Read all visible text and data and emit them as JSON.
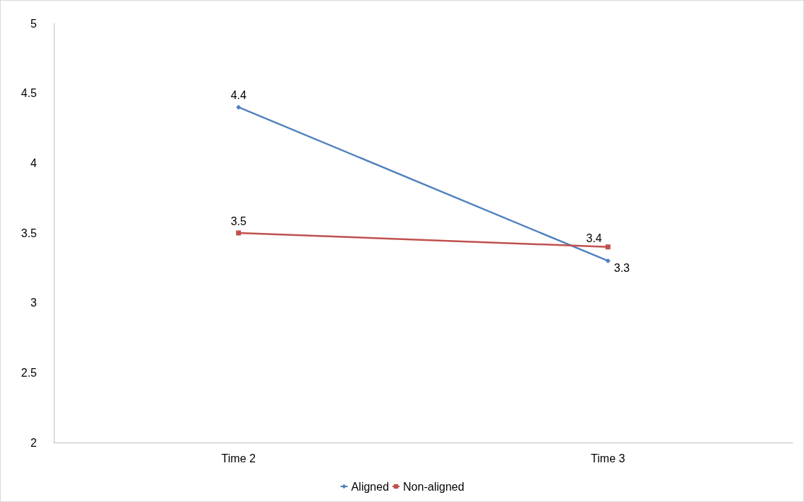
{
  "chart_data": {
    "type": "line",
    "categories": [
      "Time 2",
      "Time 3"
    ],
    "series": [
      {
        "name": "Aligned",
        "color": "#4f81bd",
        "values": [
          4.4,
          3.3
        ],
        "marker": "diamond"
      },
      {
        "name": "Non-aligned",
        "color": "#c0504d",
        "values": [
          3.5,
          3.4
        ],
        "marker": "square"
      }
    ],
    "ylim": [
      2,
      5
    ],
    "yticks": [
      2,
      2.5,
      3,
      3.5,
      4,
      4.5,
      5
    ],
    "grid": false,
    "legend": "bottom",
    "data_labels": true
  }
}
